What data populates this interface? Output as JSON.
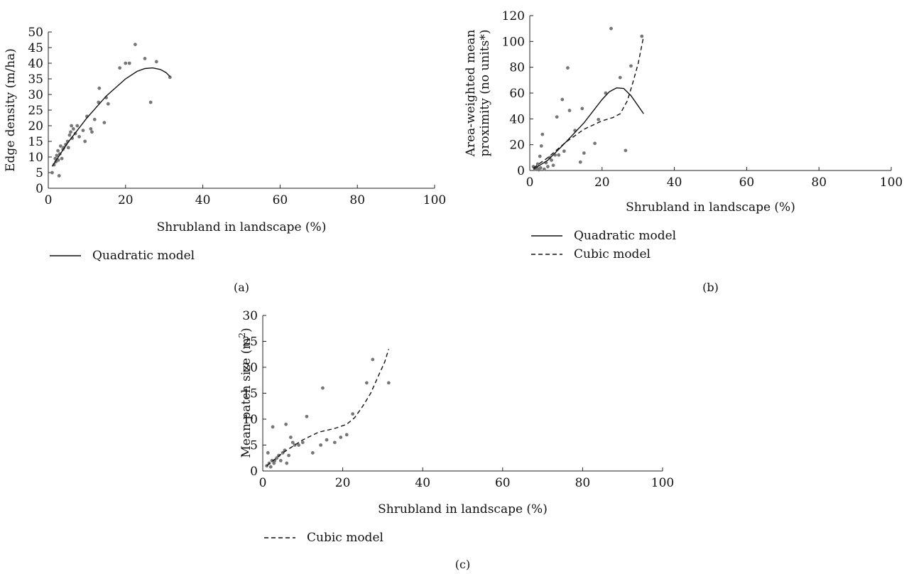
{
  "chart_data": [
    {
      "panel": "(a)",
      "type": "scatter",
      "xlabel": "Shrubland in landscape (%)",
      "ylabel": "Edge density (m/ha)",
      "xlim": [
        0,
        100
      ],
      "ylim": [
        0,
        50
      ],
      "xticks": [
        0,
        20,
        40,
        60,
        80,
        100
      ],
      "yticks": [
        0,
        5,
        10,
        15,
        20,
        25,
        30,
        35,
        40,
        45,
        50
      ],
      "grid": false,
      "points": [
        [
          1.0,
          5.0
        ],
        [
          1.5,
          7.5
        ],
        [
          1.8,
          9.5
        ],
        [
          2.0,
          8.5
        ],
        [
          2.2,
          10.5
        ],
        [
          2.5,
          12.0
        ],
        [
          2.6,
          9.0
        ],
        [
          2.8,
          4.0
        ],
        [
          3.0,
          11.0
        ],
        [
          3.2,
          13.5
        ],
        [
          3.5,
          9.5
        ],
        [
          3.8,
          12.5
        ],
        [
          4.0,
          13.0
        ],
        [
          4.5,
          14.0
        ],
        [
          5.0,
          15.0
        ],
        [
          5.2,
          13.0
        ],
        [
          5.5,
          17.0
        ],
        [
          5.8,
          18.0
        ],
        [
          6.0,
          20.0
        ],
        [
          6.2,
          16.0
        ],
        [
          6.5,
          19.0
        ],
        [
          7.0,
          17.5
        ],
        [
          7.5,
          20.0
        ],
        [
          8.0,
          16.5
        ],
        [
          9.0,
          18.5
        ],
        [
          9.5,
          15.0
        ],
        [
          10.0,
          23.0
        ],
        [
          11.0,
          19.0
        ],
        [
          11.3,
          18.0
        ],
        [
          12.0,
          22.0
        ],
        [
          13.0,
          27.5
        ],
        [
          13.2,
          32.0
        ],
        [
          14.5,
          21.0
        ],
        [
          15.0,
          29.0
        ],
        [
          15.5,
          27.0
        ],
        [
          18.5,
          38.5
        ],
        [
          20.0,
          40.0
        ],
        [
          21.0,
          40.0
        ],
        [
          22.5,
          46.0
        ],
        [
          25.0,
          41.5
        ],
        [
          26.5,
          27.5
        ],
        [
          28.0,
          40.5
        ],
        [
          31.5,
          35.5
        ]
      ],
      "series": [
        {
          "name": "Quadratic model",
          "style": "solid",
          "x": [
            1,
            5,
            10,
            15,
            20,
            23,
            25,
            27,
            29,
            30.5,
            31.5
          ],
          "y": [
            7,
            14.5,
            22.5,
            29.5,
            35,
            37.4,
            38.3,
            38.5,
            38,
            37,
            35.7
          ]
        }
      ]
    },
    {
      "panel": "(b)",
      "type": "scatter",
      "xlabel": "Shrubland in landscape (%)",
      "ylabel": "Area-weighted mean proximity (no units*)",
      "ylabel_lines": [
        "Area-weighted mean",
        "proximity (no units*)"
      ],
      "xlim": [
        0,
        100
      ],
      "ylim": [
        0,
        120
      ],
      "xticks": [
        0,
        20,
        40,
        60,
        80,
        100
      ],
      "yticks": [
        0,
        20,
        40,
        60,
        80,
        100,
        120
      ],
      "grid": false,
      "points": [
        [
          1.0,
          3.0
        ],
        [
          1.5,
          1.0
        ],
        [
          2.0,
          2.0
        ],
        [
          2.2,
          5.0
        ],
        [
          2.5,
          0.5
        ],
        [
          2.8,
          11.0
        ],
        [
          3.0,
          2.0
        ],
        [
          3.2,
          19.0
        ],
        [
          3.5,
          28.0
        ],
        [
          4.0,
          1.0
        ],
        [
          4.5,
          6.0
        ],
        [
          5.0,
          3.0
        ],
        [
          5.5,
          10.0
        ],
        [
          6.0,
          8.0
        ],
        [
          6.5,
          4.0
        ],
        [
          7.0,
          12.0
        ],
        [
          7.5,
          41.5
        ],
        [
          8.0,
          12.0
        ],
        [
          9.0,
          55.0
        ],
        [
          9.5,
          15.0
        ],
        [
          10.5,
          79.5
        ],
        [
          11.0,
          46.5
        ],
        [
          12.5,
          31.0
        ],
        [
          14.0,
          6.5
        ],
        [
          14.5,
          48.0
        ],
        [
          15.0,
          13.5
        ],
        [
          18.0,
          21.0
        ],
        [
          19.0,
          39.5
        ],
        [
          21.0,
          60.0
        ],
        [
          22.5,
          110.0
        ],
        [
          25.0,
          72.0
        ],
        [
          26.5,
          15.5
        ],
        [
          28.0,
          81.0
        ],
        [
          31.0,
          104.0
        ]
      ],
      "series": [
        {
          "name": "Quadratic model",
          "style": "solid",
          "x": [
            1,
            5,
            10,
            15,
            20,
            22,
            24,
            26,
            28,
            30,
            31.5
          ],
          "y": [
            1,
            8,
            22,
            37,
            55,
            61,
            64,
            63.5,
            58,
            50,
            44
          ]
        },
        {
          "name": "Cubic model",
          "style": "dashed",
          "x": [
            1,
            5,
            10,
            15,
            20,
            23,
            25,
            27,
            28.5,
            30,
            31.5
          ],
          "y": [
            2,
            10,
            22,
            32,
            38.5,
            41,
            44,
            54,
            68,
            83,
            104
          ]
        }
      ]
    },
    {
      "panel": "(c)",
      "type": "scatter",
      "xlabel": "Shrubland in landscape (%)",
      "ylabel": "Mean patch size (m2)",
      "ylabel_base": "Mean patch size (m",
      "ylabel_sup": "2",
      "ylabel_end": ")",
      "xlim": [
        0,
        100
      ],
      "ylim": [
        0,
        30
      ],
      "xticks": [
        0,
        20,
        40,
        60,
        80,
        100
      ],
      "yticks": [
        0,
        5,
        10,
        15,
        20,
        25,
        30
      ],
      "grid": false,
      "points": [
        [
          1.0,
          1.0
        ],
        [
          1.3,
          3.5
        ],
        [
          1.6,
          1.5
        ],
        [
          2.0,
          0.8
        ],
        [
          2.3,
          2.0
        ],
        [
          2.5,
          8.5
        ],
        [
          2.8,
          1.5
        ],
        [
          3.0,
          2.0
        ],
        [
          3.5,
          2.5
        ],
        [
          4.0,
          3.0
        ],
        [
          4.5,
          2.0
        ],
        [
          5.0,
          3.5
        ],
        [
          5.5,
          4.0
        ],
        [
          5.8,
          9.0
        ],
        [
          6.0,
          1.5
        ],
        [
          6.5,
          3.0
        ],
        [
          7.0,
          6.5
        ],
        [
          7.5,
          5.5
        ],
        [
          8.0,
          5.0
        ],
        [
          9.0,
          5.0
        ],
        [
          10.0,
          5.5
        ],
        [
          11.0,
          10.5
        ],
        [
          12.5,
          3.5
        ],
        [
          14.5,
          5.0
        ],
        [
          15.0,
          16.0
        ],
        [
          16.0,
          6.0
        ],
        [
          18.0,
          5.5
        ],
        [
          19.5,
          6.5
        ],
        [
          21.0,
          7.0
        ],
        [
          22.5,
          11.0
        ],
        [
          26.0,
          17.0
        ],
        [
          27.5,
          21.5
        ],
        [
          31.5,
          17.0
        ]
      ],
      "series": [
        {
          "name": "Cubic model",
          "style": "dashed",
          "x": [
            1,
            5,
            10,
            14,
            18,
            21,
            23,
            25,
            27,
            29,
            30.5,
            31.5
          ],
          "y": [
            1,
            3.5,
            6,
            7.5,
            8.2,
            9,
            10.3,
            12.5,
            15,
            18.5,
            21,
            23.5
          ]
        }
      ]
    }
  ]
}
